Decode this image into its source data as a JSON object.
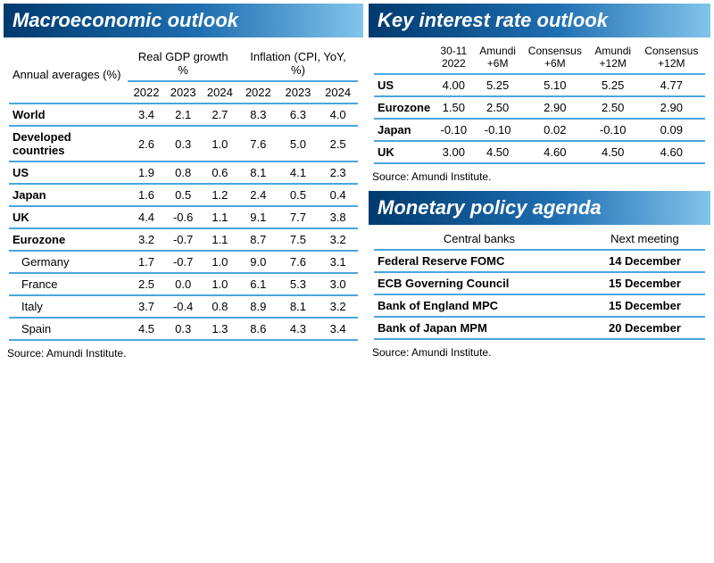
{
  "colors": {
    "title_gradient_start": "#003a6e",
    "title_gradient_mid": "#1f6fb2",
    "title_gradient_end": "#82c4ea",
    "border_color": "#4aa6de",
    "background": "#ffffff"
  },
  "macro": {
    "title": "Macroeconomic outlook",
    "subnote": "",
    "row_header": "Annual averages (%)",
    "group_headers": [
      "Real GDP growth %",
      "Inflation (CPI, YoY, %)"
    ],
    "year_headers": [
      "2022",
      "2023",
      "2024",
      "2022",
      "2023",
      "2024"
    ],
    "rows": [
      {
        "label": "World",
        "sub": false,
        "vals": [
          "3.4",
          "2.1",
          "2.7",
          "8.3",
          "6.3",
          "4.0"
        ]
      },
      {
        "label": "Developed countries",
        "sub": false,
        "vals": [
          "2.6",
          "0.3",
          "1.0",
          "7.6",
          "5.0",
          "2.5"
        ]
      },
      {
        "label": "US",
        "sub": false,
        "vals": [
          "1.9",
          "0.8",
          "0.6",
          "8.1",
          "4.1",
          "2.3"
        ]
      },
      {
        "label": "Japan",
        "sub": false,
        "vals": [
          "1.6",
          "0.5",
          "1.2",
          "2.4",
          "0.5",
          "0.4"
        ]
      },
      {
        "label": "UK",
        "sub": false,
        "vals": [
          "4.4",
          "-0.6",
          "1.1",
          "9.1",
          "7.7",
          "3.8"
        ]
      },
      {
        "label": "Eurozone",
        "sub": false,
        "vals": [
          "3.2",
          "-0.7",
          "1.1",
          "8.7",
          "7.5",
          "3.2"
        ]
      },
      {
        "label": "Germany",
        "sub": true,
        "vals": [
          "1.7",
          "-0.7",
          "1.0",
          "9.0",
          "7.6",
          "3.1"
        ]
      },
      {
        "label": "France",
        "sub": true,
        "vals": [
          "2.5",
          "0.0",
          "1.0",
          "6.1",
          "5.3",
          "3.0"
        ]
      },
      {
        "label": "Italy",
        "sub": true,
        "vals": [
          "3.7",
          "-0.4",
          "0.8",
          "8.9",
          "8.1",
          "3.2"
        ]
      },
      {
        "label": "Spain",
        "sub": true,
        "vals": [
          "4.5",
          "0.3",
          "1.3",
          "8.6",
          "4.3",
          "3.4"
        ]
      }
    ],
    "source": "Source: Amundi Institute."
  },
  "rates": {
    "title": "Key interest rate outlook",
    "col_headers": [
      "30-11 2022",
      "Amundi +6M",
      "Consensus +6M",
      "Amundi +12M",
      "Consensus +12M"
    ],
    "rows": [
      {
        "label": "US",
        "vals": [
          "4.00",
          "5.25",
          "5.10",
          "5.25",
          "4.77"
        ]
      },
      {
        "label": "Eurozone",
        "vals": [
          "1.50",
          "2.50",
          "2.90",
          "2.50",
          "2.90"
        ]
      },
      {
        "label": "Japan",
        "vals": [
          "-0.10",
          "-0.10",
          "0.02",
          "-0.10",
          "0.09"
        ]
      },
      {
        "label": "UK",
        "vals": [
          "3.00",
          "4.50",
          "4.60",
          "4.50",
          "4.60"
        ]
      }
    ],
    "source": "Source: Amundi Institute."
  },
  "agenda": {
    "title": "Monetary policy agenda",
    "col_headers": [
      "Central banks",
      "Next meeting"
    ],
    "rows": [
      {
        "label": "Federal Reserve FOMC",
        "meeting": "14 December"
      },
      {
        "label": "ECB Governing Council",
        "meeting": "15 December"
      },
      {
        "label": "Bank of England MPC",
        "meeting": "15 December"
      },
      {
        "label": "Bank of Japan MPM",
        "meeting": "20 December"
      }
    ],
    "source": "Source: Amundi Institute."
  }
}
